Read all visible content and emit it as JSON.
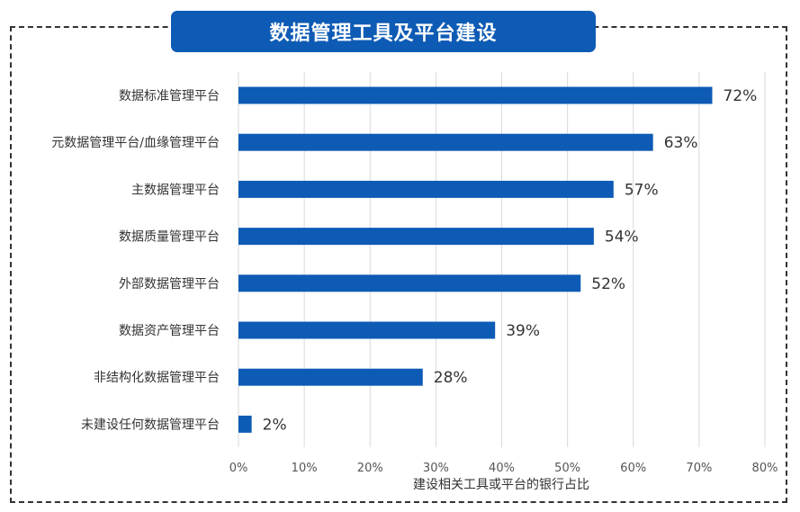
{
  "chart_data": {
    "type": "bar",
    "orientation": "horizontal",
    "title": "数据管理工具及平台建设",
    "xlabel": "建设相关工具或平台的银行占比",
    "ylabel": "",
    "xlim": [
      0,
      80
    ],
    "xticks": [
      "0%",
      "10%",
      "20%",
      "30%",
      "40%",
      "50%",
      "60%",
      "70%",
      "80%"
    ],
    "categories": [
      "数据标准管理平台",
      "元数据管理平台/血缘管理平台",
      "主数据管理平台",
      "数据质量管理平台",
      "外部数据管理平台",
      "数据资产管理平台",
      "非结构化数据管理平台",
      "未建设任何数据管理平台"
    ],
    "values": [
      72,
      63,
      57,
      54,
      52,
      39,
      28,
      2
    ],
    "value_labels": [
      "72%",
      "63%",
      "57%",
      "54%",
      "52%",
      "39%",
      "28%",
      "2%"
    ],
    "grid": "vertical",
    "legend": "none",
    "colors": {
      "bar": "#0d5bb5",
      "banner": "#0d5bb5",
      "grid": "#d9d9d9"
    }
  }
}
